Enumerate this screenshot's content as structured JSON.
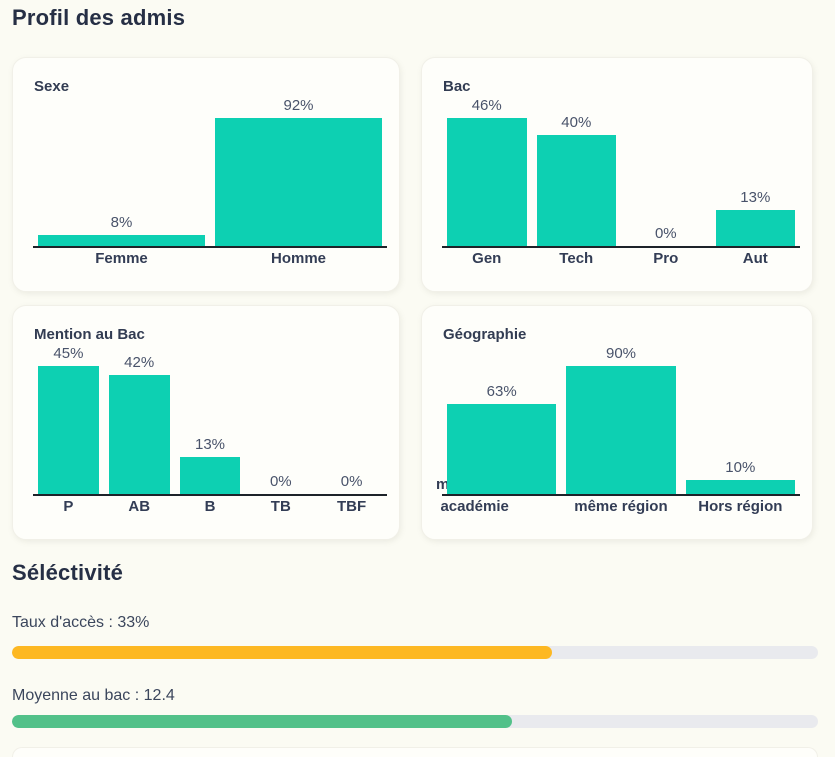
{
  "sections": {
    "profile": {
      "title": "Profil des admis"
    },
    "selectivity": {
      "title": "Séléctivité",
      "metrics": [
        {
          "label": "Taux d'accès : 33%",
          "value_text": "33%",
          "fill_percent": 67,
          "color": "#fdb822"
        },
        {
          "label": "Moyenne au bac : 12.4",
          "value_text": "12.4",
          "fill_percent": 62,
          "color": "#52c189"
        }
      ]
    }
  },
  "chart_data": [
    {
      "type": "bar",
      "title": "Sexe",
      "categories": [
        "Femme",
        "Homme"
      ],
      "values": [
        8,
        92
      ],
      "unit": "%",
      "bar_color": "#0dd0b2",
      "value_labels_position": "above-bars",
      "bars_scaled_to_max": true
    },
    {
      "type": "bar",
      "title": "Bac",
      "categories": [
        "Gen",
        "Tech",
        "Pro",
        "Aut"
      ],
      "values": [
        46,
        40,
        0,
        13
      ],
      "unit": "%",
      "bar_color": "#0dd0b2",
      "value_labels_position": "above-bars",
      "bars_scaled_to_max": true
    },
    {
      "type": "bar",
      "title": "Mention au Bac",
      "categories": [
        "P",
        "AB",
        "B",
        "TB",
        "TBF"
      ],
      "values": [
        45,
        42,
        13,
        0,
        0
      ],
      "unit": "%",
      "bar_color": "#0dd0b2",
      "value_labels_position": "above-bars",
      "bars_scaled_to_max": true
    },
    {
      "type": "bar",
      "title": "Géographie",
      "categories": [
        "même académie",
        "même région",
        "Hors région"
      ],
      "values": [
        63,
        90,
        10
      ],
      "unit": "%",
      "bar_color": "#0dd0b2",
      "value_labels_position": "above-bars",
      "bars_scaled_to_max": true,
      "label_layout": {
        "0": {
          "lines": [
            "même",
            "académie"
          ],
          "dx": [
            -44,
            -27
          ]
        }
      }
    }
  ],
  "colors": {
    "bar_teal": "#0dd0b2",
    "progress_yellow": "#fdb822",
    "progress_green": "#52c189",
    "progress_track": "#e9eaee",
    "page_background": "#fbfbf3",
    "card_background": "#fefefa"
  }
}
